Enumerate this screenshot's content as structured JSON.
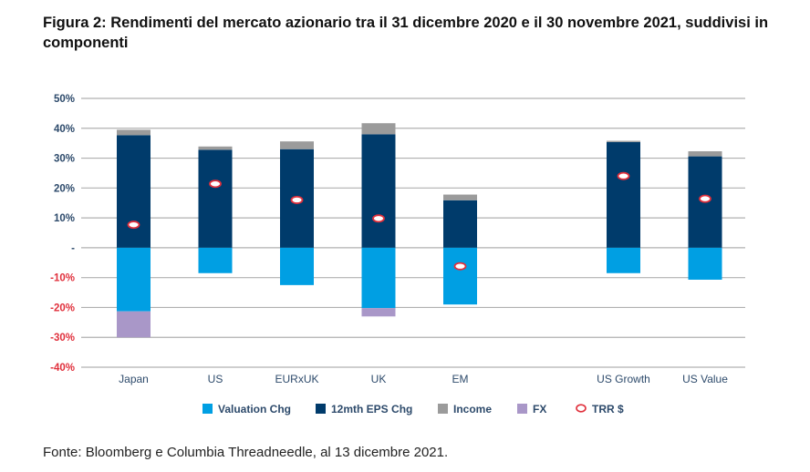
{
  "title": "Figura 2: Rendimenti del mercato azionario tra il 31 dicembre 2020 e il 30 novembre 2021, suddivisi in componenti",
  "source": "Fonte: Bloomberg e Columbia Threadneedle, al 13 dicembre 2021.",
  "chart_data": {
    "type": "bar",
    "stacked": true,
    "title": "Rendimenti del mercato azionario tra il 31 dicembre 2020 e il 30 novembre 2021, suddivisi in componenti",
    "xlabel": "",
    "ylabel": "",
    "ylim": [
      -40,
      50
    ],
    "yticks": [
      50,
      40,
      30,
      20,
      10,
      0,
      -10,
      -20,
      -30,
      -40
    ],
    "ytick_labels": [
      "50%",
      "40%",
      "30%",
      "20%",
      "10%",
      "-",
      "-10%",
      "-20%",
      "-30%",
      "-40%"
    ],
    "grid": true,
    "legend_position": "bottom",
    "categories": [
      "Japan",
      "US",
      "EURxUK",
      "UK",
      "EM",
      "",
      "US Growth",
      "US Value"
    ],
    "series": [
      {
        "name": "Valuation Chg",
        "color": "#009fe3",
        "values": [
          -21.3,
          -8.5,
          -12.5,
          -20.2,
          -19.0,
          null,
          -8.5,
          -10.7
        ]
      },
      {
        "name": "12mth EPS Chg",
        "color": "#003b6b",
        "values": [
          37.7,
          32.8,
          33.0,
          38.0,
          15.9,
          null,
          35.4,
          30.6
        ]
      },
      {
        "name": "Income",
        "color": "#9b9b9b",
        "values": [
          1.8,
          1.1,
          2.6,
          3.7,
          1.9,
          null,
          0.4,
          1.7
        ]
      },
      {
        "name": "FX",
        "color": "#a997c8",
        "values": [
          -8.7,
          0,
          0,
          -2.8,
          0,
          null,
          0,
          0
        ]
      },
      {
        "name": "TRR $",
        "color": "#e0303c",
        "marker": "circle",
        "values": [
          7.7,
          21.4,
          16.0,
          9.8,
          -6.2,
          null,
          24.0,
          16.4
        ]
      }
    ],
    "colors": {
      "positive_tick": "#2d4a6b",
      "negative_tick": "#e0303c",
      "grid": "#b0b0b0"
    }
  }
}
